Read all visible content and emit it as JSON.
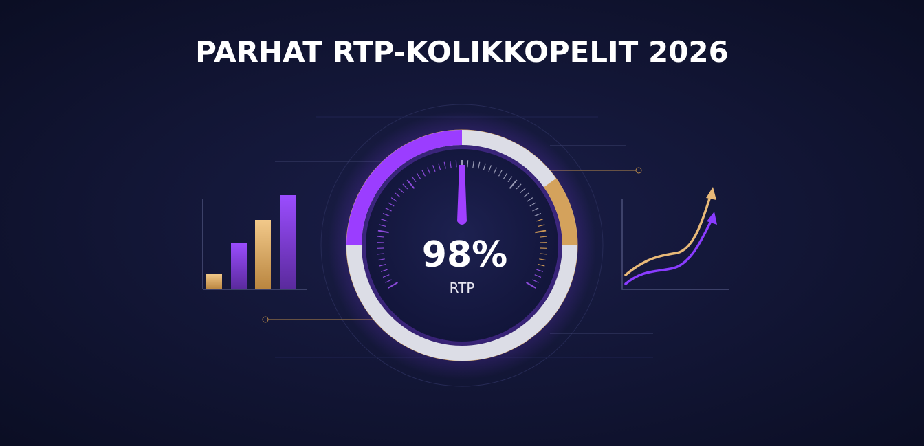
{
  "title": "PARHAT RTP-KOLIKKOPELIT 2026",
  "gauge": {
    "value_label": "98%",
    "label": "RTP"
  }
}
